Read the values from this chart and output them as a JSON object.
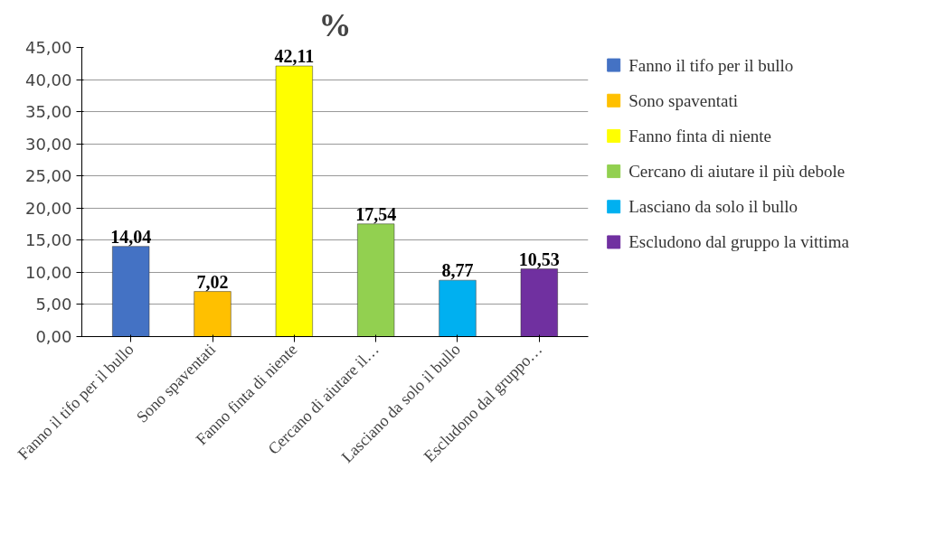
{
  "chart_data": {
    "type": "bar",
    "title": "%",
    "categories": [
      "Fanno il tifo per il bullo",
      "Sono spaventati",
      "Fanno finta di niente",
      "Cercano di aiutare il…",
      "Lasciano da solo il bullo",
      "Escludono dal gruppo…"
    ],
    "series": [
      {
        "name": "Fanno il tifo per il bullo",
        "color": "#4472c4",
        "values": [
          14.04,
          null,
          null,
          null,
          null,
          null
        ],
        "value_labels": [
          "14,04",
          null,
          null,
          null,
          null,
          null
        ]
      },
      {
        "name": "Sono spaventati",
        "color": "#ffc000",
        "values": [
          null,
          7.02,
          null,
          null,
          null,
          null
        ],
        "value_labels": [
          null,
          "7,02",
          null,
          null,
          null,
          null
        ]
      },
      {
        "name": "Fanno finta di niente",
        "color": "#ffff00",
        "values": [
          null,
          null,
          42.11,
          null,
          null,
          null
        ],
        "value_labels": [
          null,
          null,
          "42,11",
          null,
          null,
          null
        ]
      },
      {
        "name": "Cercano di aiutare il più debole",
        "color": "#92d050",
        "values": [
          null,
          null,
          null,
          17.54,
          null,
          null
        ],
        "value_labels": [
          null,
          null,
          null,
          "17,54",
          null,
          null
        ]
      },
      {
        "name": "Lasciano da solo il bullo",
        "color": "#00b0f0",
        "values": [
          null,
          null,
          null,
          null,
          8.77,
          null
        ],
        "value_labels": [
          null,
          null,
          null,
          null,
          "8,77",
          null
        ]
      },
      {
        "name": "Escludono dal gruppo la vittima",
        "color": "#7030a0",
        "values": [
          null,
          null,
          null,
          null,
          null,
          10.53
        ],
        "value_labels": [
          null,
          null,
          null,
          null,
          null,
          "10,53"
        ]
      }
    ],
    "ylim": [
      0,
      45
    ],
    "yticks": [
      {
        "value": 0,
        "label": "0,00"
      },
      {
        "value": 5,
        "label": "5,00"
      },
      {
        "value": 10,
        "label": "10,00"
      },
      {
        "value": 15,
        "label": "15,00"
      },
      {
        "value": 20,
        "label": "20,00"
      },
      {
        "value": 25,
        "label": "25,00"
      },
      {
        "value": 30,
        "label": "30,00"
      },
      {
        "value": 35,
        "label": "35,00"
      },
      {
        "value": 40,
        "label": "40,00"
      },
      {
        "value": 45,
        "label": "45,00"
      }
    ],
    "grid": "y",
    "legend": "right"
  }
}
